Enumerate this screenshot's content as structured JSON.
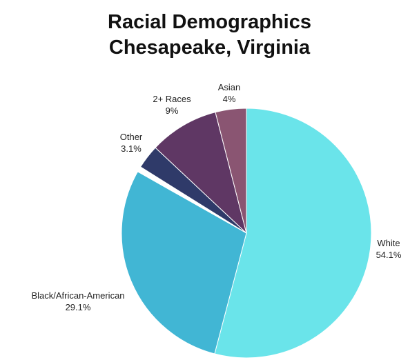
{
  "chart_data": {
    "type": "pie",
    "title": "Racial Demographics",
    "subtitle": "Chesapeake, Virginia",
    "series": [
      {
        "label": "White",
        "value_label": "54.1%",
        "value": 54.1,
        "color": "#6ae4ea"
      },
      {
        "label": "Black/African-American",
        "value_label": "29.1%",
        "value": 29.1,
        "color": "#41b6d4"
      },
      {
        "label": "",
        "value_label": "",
        "value": 0.7,
        "color": "#ffffff"
      },
      {
        "label": "Other",
        "value_label": "3.1%",
        "value": 3.1,
        "color": "#2f3a69"
      },
      {
        "label": "2+ Races",
        "value_label": "9%",
        "value": 9.0,
        "color": "#5f3764"
      },
      {
        "label": "Asian",
        "value_label": "4%",
        "value": 4.0,
        "color": "#8a5572"
      }
    ]
  }
}
